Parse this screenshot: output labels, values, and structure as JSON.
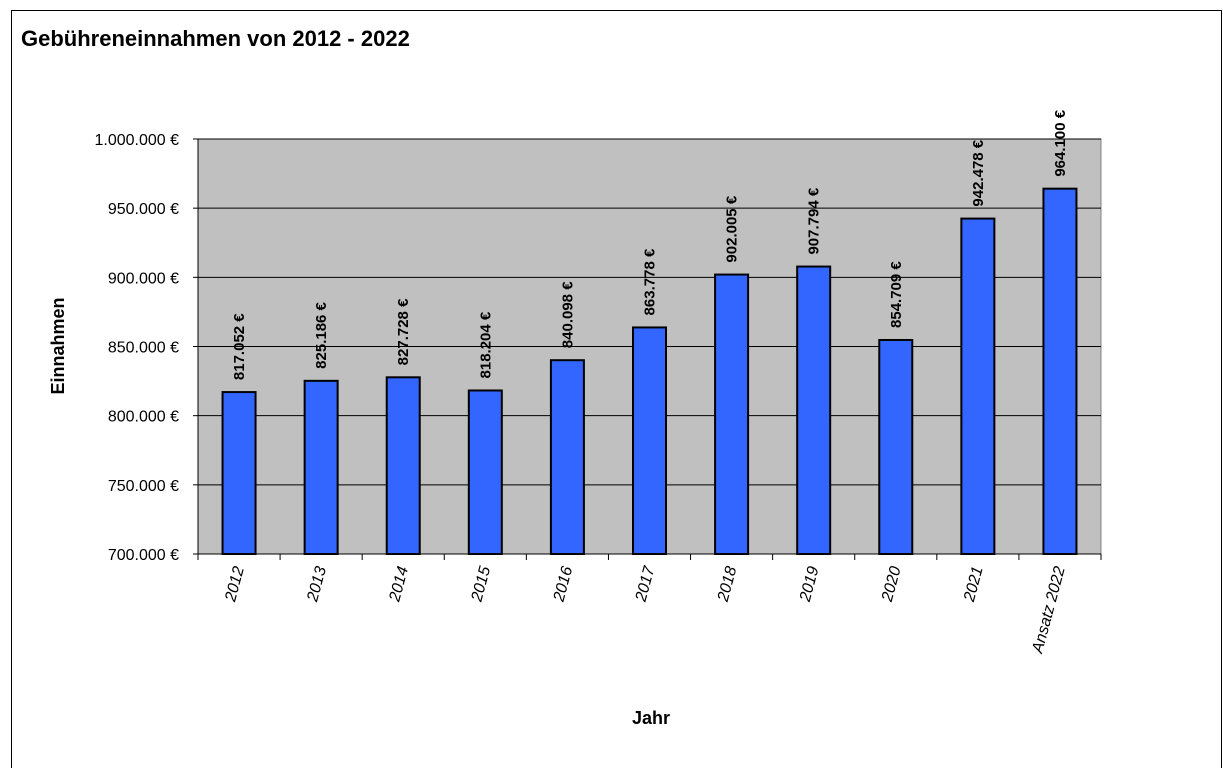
{
  "chart_data": {
    "type": "bar",
    "title": "Gebühreneinnahmen von 2012 - 2022",
    "xlabel": "Jahr",
    "ylabel": "Einnahmen",
    "categories": [
      "2012",
      "2013",
      "2014",
      "2015",
      "2016",
      "2017",
      "2018",
      "2019",
      "2020",
      "2021",
      "Ansatz 2022"
    ],
    "values": [
      817052,
      825186,
      827728,
      818204,
      840098,
      863778,
      902005,
      907794,
      854709,
      942478,
      964100
    ],
    "value_labels": [
      "817.052 €",
      "825.186 €",
      "827.728 €",
      "818.204 €",
      "840.098 €",
      "863.778 €",
      "902.005 €",
      "907.794 €",
      "854.709 €",
      "942.478 €",
      "964.100 €"
    ],
    "ylim": [
      700000,
      1000000
    ],
    "yticks": [
      700000,
      750000,
      800000,
      850000,
      900000,
      950000,
      1000000
    ],
    "ytick_labels": [
      "700.000 €",
      "750.000 €",
      "800.000 €",
      "850.000 €",
      "900.000 €",
      "950.000 €",
      "1.000.000 €"
    ],
    "grid": true,
    "colors": {
      "bar": "#3366ff",
      "plot_background": "#c0c0c0",
      "grid": "#000000"
    }
  }
}
